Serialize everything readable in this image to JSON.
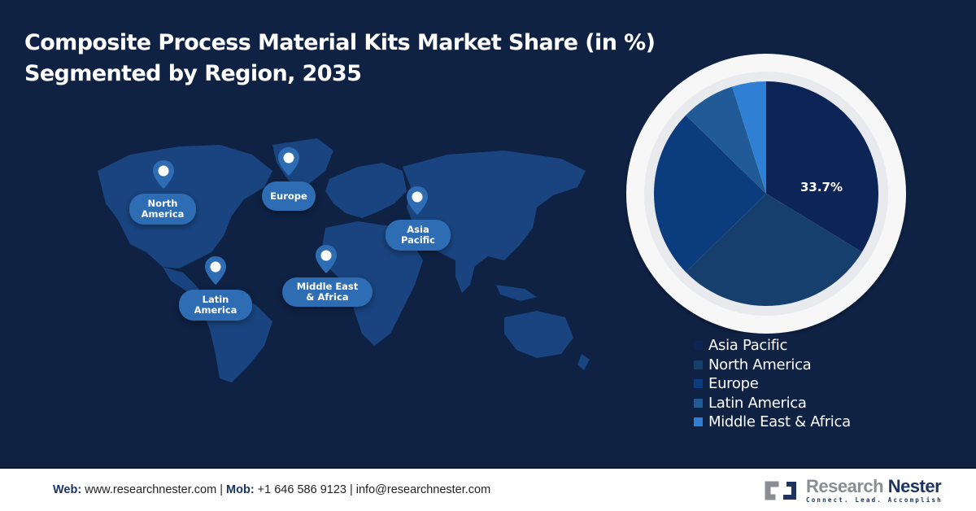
{
  "header": {
    "title_line1": "Composite Process Material Kits Market Share (in %)",
    "title_line2": "Segmented by Region, 2035"
  },
  "map": {
    "pins": [
      {
        "label": "North\nAmerica",
        "icon": "location-pin-icon"
      },
      {
        "label": "Europe",
        "icon": "location-pin-icon"
      },
      {
        "label": "Asia\nPacific",
        "icon": "location-pin-icon"
      },
      {
        "label": "Latin\nAmerica",
        "icon": "location-pin-icon"
      },
      {
        "label": "Middle East\n& Africa",
        "icon": "location-pin-icon"
      }
    ]
  },
  "chart_data": {
    "type": "pie",
    "title": "Composite Process Material Kits Market Share (in %) Segmented by Region, 2035",
    "categories": [
      "Asia Pacific",
      "North America",
      "Europe",
      "Latin America",
      "Middle East & Africa"
    ],
    "values": [
      33.7,
      29.0,
      24.6,
      7.8,
      4.9
    ],
    "colors": [
      "#0c2456",
      "#173f6e",
      "#0b3c7d",
      "#215b97",
      "#2f7fd4"
    ],
    "labels_shown": {
      "Asia Pacific": "33.7%"
    },
    "start_angle": "12 o'clock, clockwise",
    "legend_position": "bottom-right"
  },
  "pie": {
    "label_main": "33.7%"
  },
  "legend": {
    "items": [
      {
        "label": "Asia Pacific",
        "color": "#0c2456"
      },
      {
        "label": "North America",
        "color": "#173f6e"
      },
      {
        "label": "Europe",
        "color": "#0b3c7d"
      },
      {
        "label": "Latin America",
        "color": "#215b97"
      },
      {
        "label": "Middle East & Africa",
        "color": "#2f7fd4"
      }
    ]
  },
  "footer": {
    "web_label": "Web:",
    "web_value": " www.researchnester.com | ",
    "mob_label": "Mob:",
    "mob_value": " +1 646 586 9123 | info@researchnester.com",
    "logo_name_part1": "Research ",
    "logo_name_part2": "Nester",
    "logo_tagline": "Connect. Lead. Accomplish"
  },
  "colors": {
    "background": "#0f2244",
    "accent": "#2e6db3"
  }
}
